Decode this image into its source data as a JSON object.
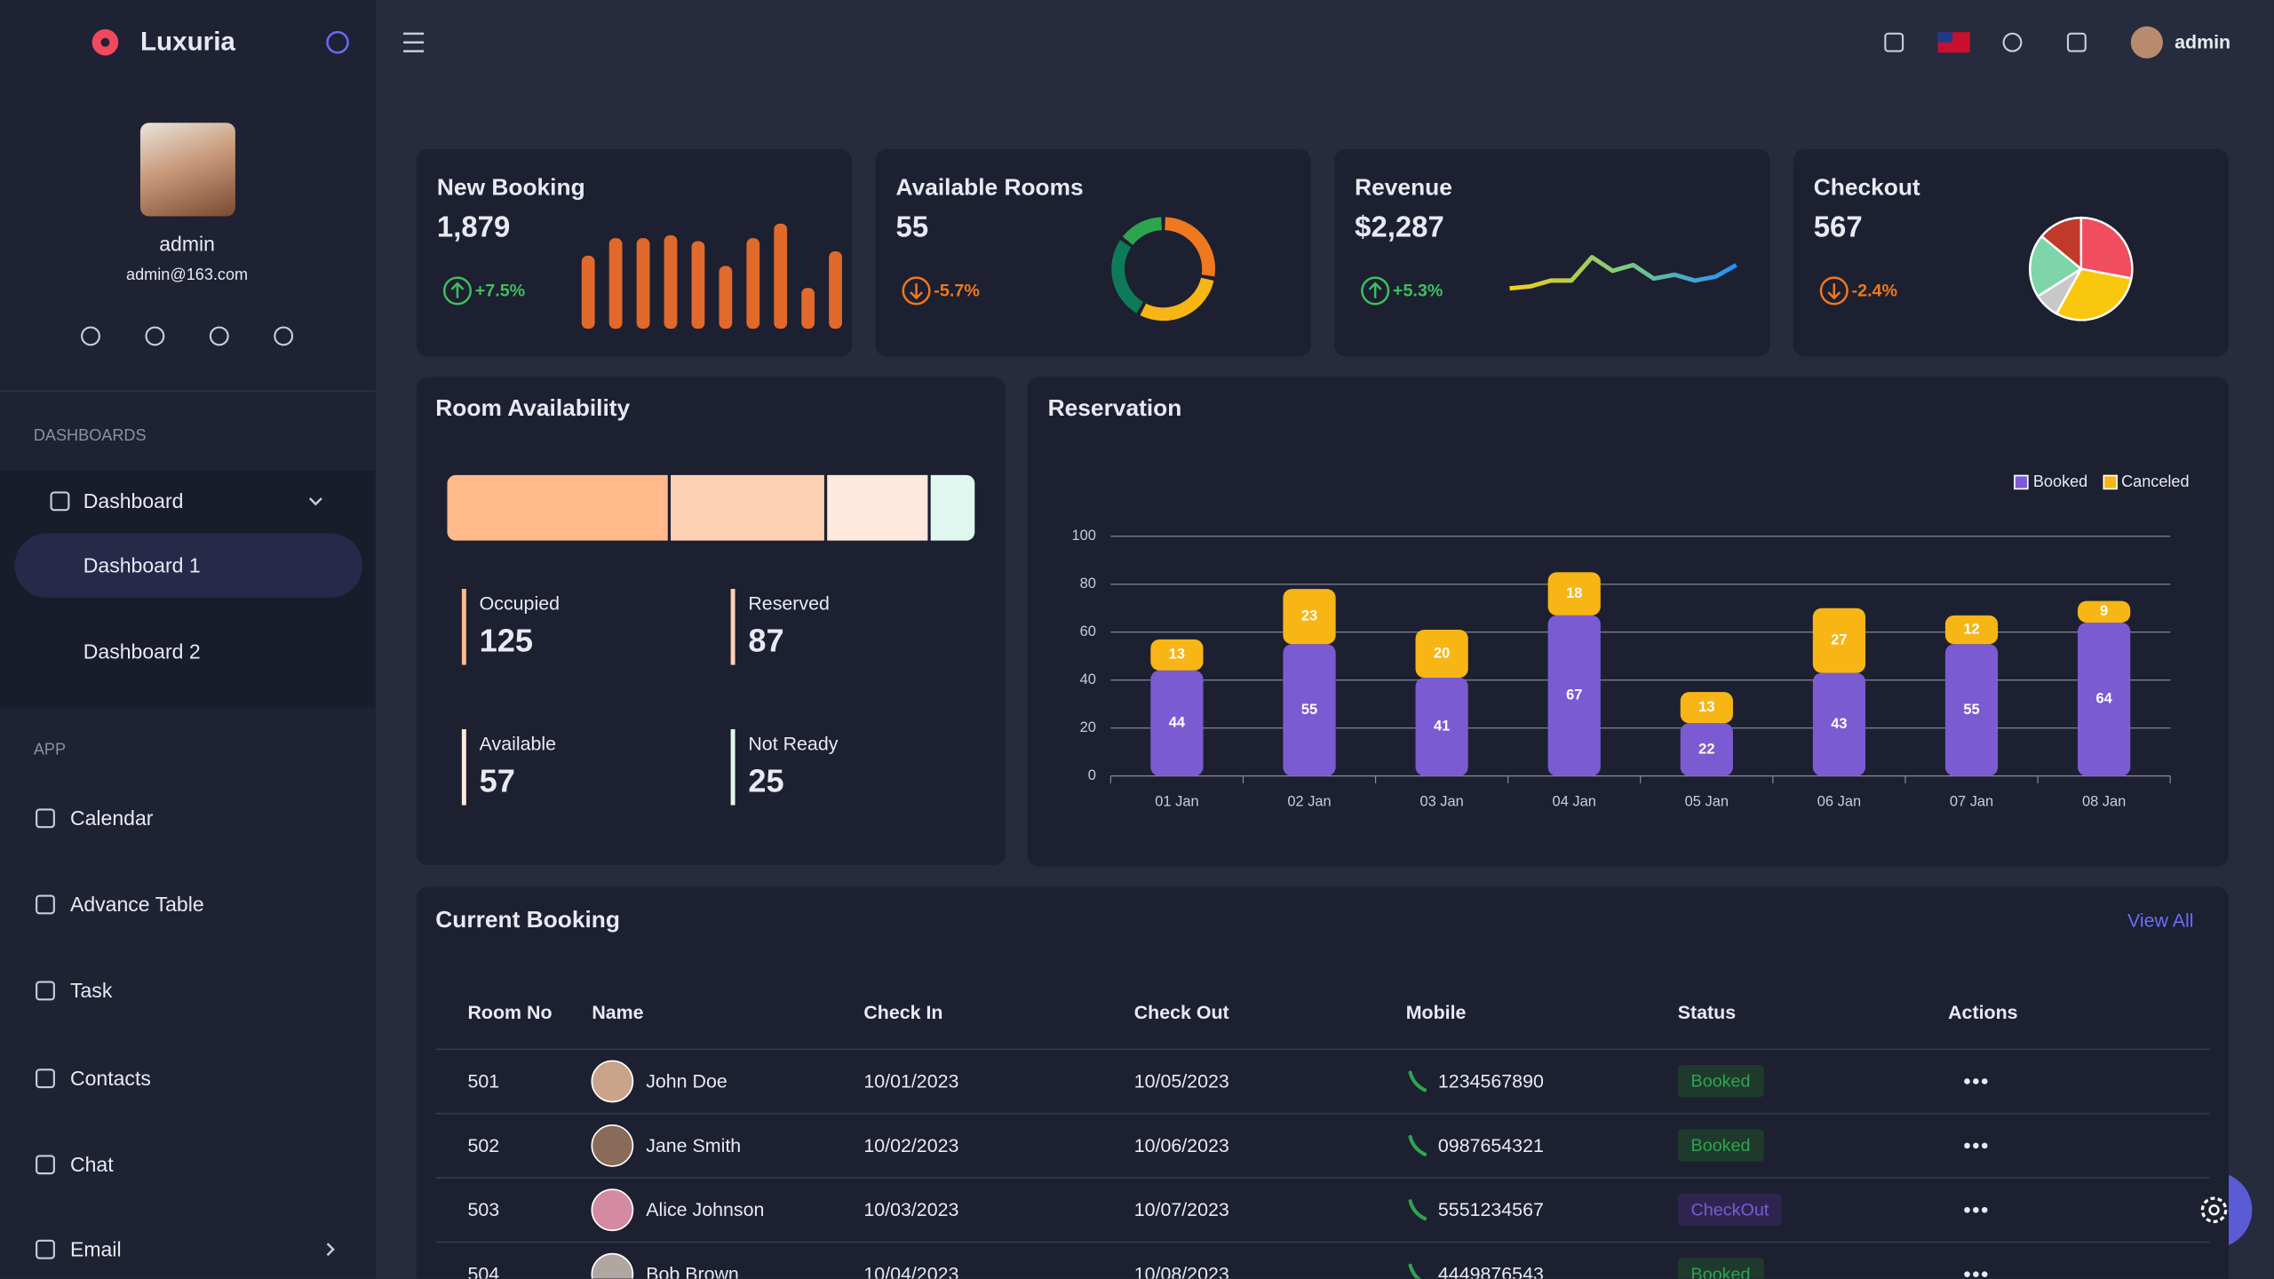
{
  "sidebar": {
    "brand": "Luxuria",
    "user": {
      "name": "admin",
      "email": "admin@163.com"
    },
    "sections": [
      {
        "title": "DASHBOARDS",
        "items": [
          {
            "label": "Dashboard",
            "children": [
              "Dashboard 1",
              "Dashboard 2"
            ]
          }
        ]
      },
      {
        "title": "APP",
        "items": [
          {
            "label": "Calendar"
          },
          {
            "label": "Advance Table"
          },
          {
            "label": "Task"
          },
          {
            "label": "Contacts"
          },
          {
            "label": "Chat"
          },
          {
            "label": "Email"
          }
        ]
      }
    ]
  },
  "header": {
    "user": "admin"
  },
  "cards": [
    {
      "title": "New Booking",
      "value": "1,879",
      "change": "+7.5%",
      "trend": "up",
      "chart": {
        "type": "bar",
        "color": "#e0692b",
        "values": [
          50,
          62,
          62,
          64,
          60,
          43,
          62,
          72,
          28,
          53
        ]
      }
    },
    {
      "title": "Available Rooms",
      "value": "55",
      "change": "-5.7%",
      "trend": "down",
      "chart": {
        "type": "donut",
        "colors": [
          "#f0781e",
          "#f7b516",
          "#0f7a5a",
          "#2ea44f"
        ],
        "values": [
          28,
          30,
          27,
          15
        ]
      }
    },
    {
      "title": "Revenue",
      "value": "$2,287",
      "change": "+5.3%",
      "trend": "up",
      "chart": {
        "type": "line",
        "colors": [
          "#f7d116",
          "#7fc97f",
          "#1e90ff"
        ],
        "values": [
          2,
          3,
          6,
          6,
          18,
          11,
          14,
          7,
          9,
          6,
          8,
          14
        ]
      }
    },
    {
      "title": "Checkout",
      "value": "567",
      "change": "-2.4%",
      "trend": "down",
      "chart": {
        "type": "pie",
        "colors": [
          "#f04e5e",
          "#f9c80e",
          "#c8c8c8",
          "#7ed6a8",
          "#c0392b"
        ],
        "values": [
          28,
          30,
          8,
          20,
          14
        ]
      }
    }
  ],
  "room_availability": {
    "title": "Room Availability",
    "items": [
      {
        "label": "Occupied",
        "value": 125,
        "color": "#ffb98a"
      },
      {
        "label": "Reserved",
        "value": 87,
        "color": "#ffd1b3"
      },
      {
        "label": "Available",
        "value": 57,
        "color": "#ffe8dc"
      },
      {
        "label": "Not Ready",
        "value": 25,
        "color": "#e0f7ef"
      }
    ]
  },
  "chart_data": {
    "type": "bar",
    "stacked": true,
    "title": "Reservation",
    "categories": [
      "01 Jan",
      "02 Jan",
      "03 Jan",
      "04 Jan",
      "05 Jan",
      "06 Jan",
      "07 Jan",
      "08 Jan"
    ],
    "series": [
      {
        "name": "Booked",
        "color": "#7b5bd1",
        "values": [
          44,
          55,
          41,
          67,
          22,
          43,
          55,
          64
        ]
      },
      {
        "name": "Canceled",
        "color": "#f7b516",
        "values": [
          13,
          23,
          20,
          18,
          13,
          27,
          12,
          9
        ]
      }
    ],
    "ylim": [
      0,
      100
    ],
    "yticks": [
      0,
      20,
      40,
      60,
      80,
      100
    ],
    "grid": true,
    "legend": "top-right"
  },
  "booking": {
    "title": "Current Booking",
    "link": "View All",
    "columns": [
      "Room No",
      "Name",
      "Check In",
      "Check Out",
      "Mobile",
      "Status",
      "Actions"
    ],
    "rows": [
      [
        "501",
        "John Doe",
        "10/01/2023",
        "10/05/2023",
        "1234567890",
        "Booked"
      ],
      [
        "502",
        "Jane Smith",
        "10/02/2023",
        "10/06/2023",
        "0987654321",
        "Booked"
      ],
      [
        "503",
        "Alice Johnson",
        "10/03/2023",
        "10/07/2023",
        "5551234567",
        "CheckOut"
      ],
      [
        "504",
        "Bob Brown",
        "10/04/2023",
        "10/08/2023",
        "4449876543",
        "Booked"
      ]
    ]
  }
}
